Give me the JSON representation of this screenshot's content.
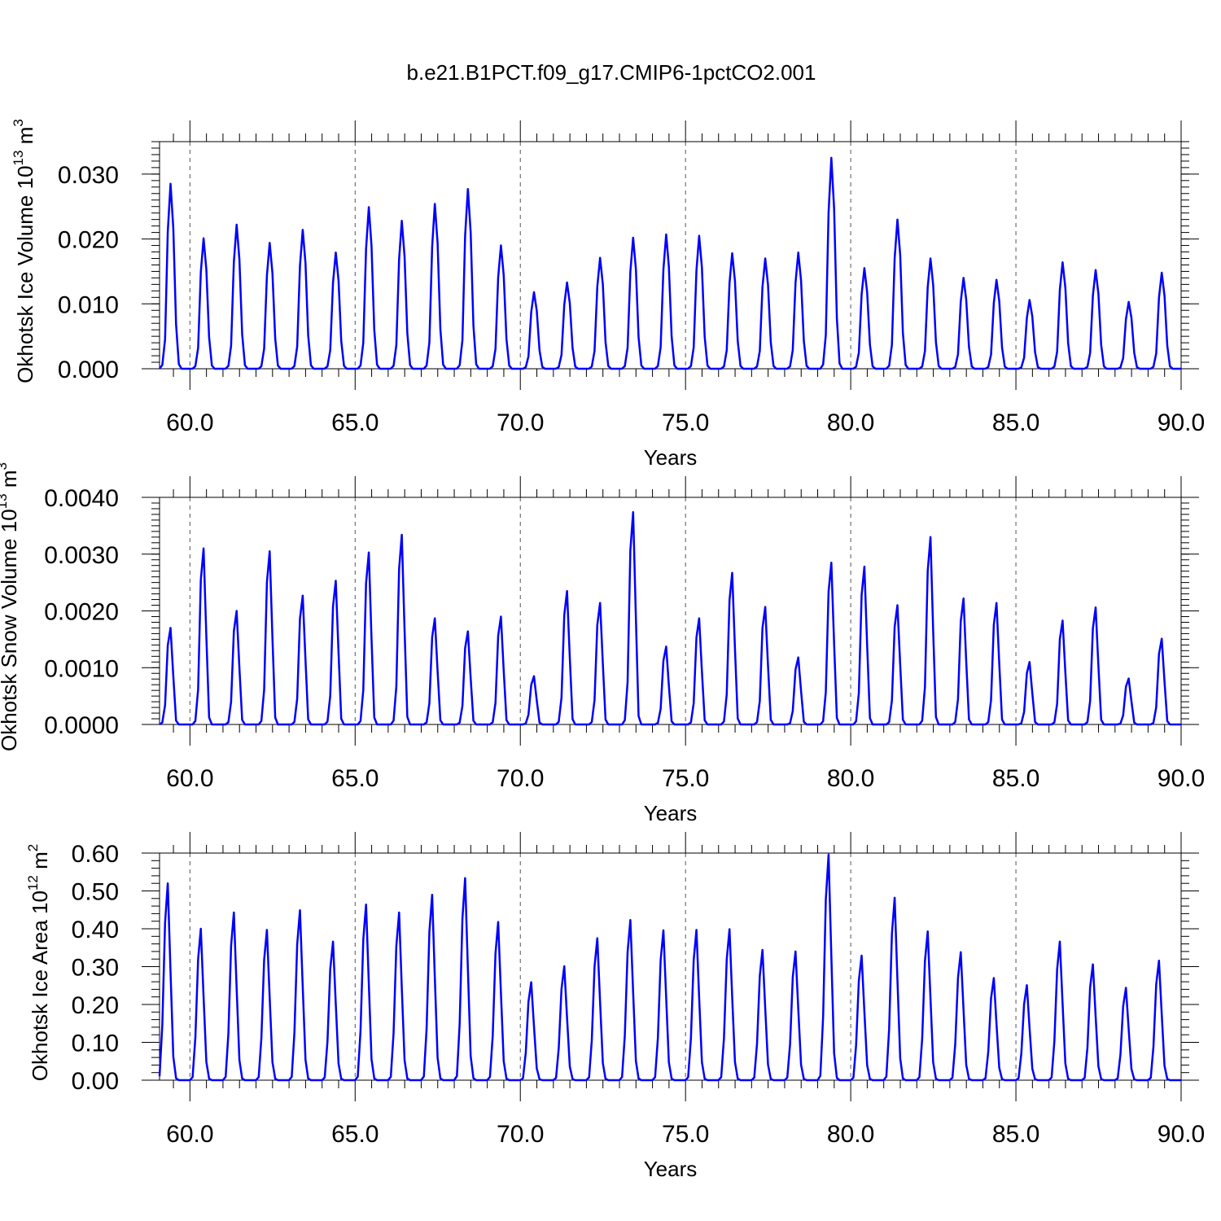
{
  "title": "b.e21.B1PCT.f09_g17.CMIP6-1pctCO2.001",
  "series_color": "#0000ff",
  "chart_data": [
    {
      "type": "line",
      "title": "b.e21.B1PCT.f09_g17.CMIP6-1pctCO2.001",
      "xlabel": "Years",
      "ylabel_main": "Okhotsk Ice Volume 10",
      "ylabel_exp": "13",
      "ylabel_unit": " m",
      "ylabel_unit_exp": "3",
      "xlim": [
        59.08,
        90.0
      ],
      "ylim": [
        0,
        0.035
      ],
      "x_ticks": [
        60,
        65,
        70,
        75,
        80,
        85,
        90
      ],
      "x_tick_labels": [
        "60.0",
        "65.0",
        "70.0",
        "75.0",
        "80.0",
        "85.0",
        "90.0"
      ],
      "y_ticks": [
        0,
        0.01,
        0.02,
        0.03
      ],
      "y_tick_labels": [
        "0.000",
        "0.010",
        "0.020",
        "0.030"
      ],
      "grid": "vertical dashed at major x ticks",
      "series": [
        {
          "start_year": 59.08,
          "step_years": 0.0833333,
          "peaks": [
            0.0285,
            0.0201,
            0.0222,
            0.0194,
            0.0214,
            0.0179,
            0.0249,
            0.0228,
            0.0254,
            0.0277,
            0.019,
            0.0118,
            0.0133,
            0.0171,
            0.0202,
            0.0207,
            0.0205,
            0.0178,
            0.017,
            0.0179,
            0.0325,
            0.0155,
            0.023,
            0.017,
            0.014,
            0.0137,
            0.0106,
            0.0164,
            0.0152,
            0.0103,
            0.0148
          ],
          "shape": [
            0.0005,
            0.02,
            0.16,
            0.74,
            1.0,
            0.76,
            0.24,
            0.025,
            0.0,
            0.0,
            0.0,
            0.0
          ]
        }
      ]
    },
    {
      "type": "line",
      "xlabel": "Years",
      "ylabel_main": "Okhotsk Snow Volume 10",
      "ylabel_exp": "13",
      "ylabel_unit": " m",
      "ylabel_unit_exp": "3",
      "xlim": [
        59.08,
        90.0
      ],
      "ylim": [
        0,
        0.004
      ],
      "x_ticks": [
        60,
        65,
        70,
        75,
        80,
        85,
        90
      ],
      "x_tick_labels": [
        "60.0",
        "65.0",
        "70.0",
        "75.0",
        "80.0",
        "85.0",
        "90.0"
      ],
      "y_ticks": [
        0,
        0.001,
        0.002,
        0.003,
        0.004
      ],
      "y_tick_labels": [
        "0.0000",
        "0.0010",
        "0.0020",
        "0.0030",
        "0.0040"
      ],
      "grid": "vertical dashed at major x ticks",
      "series": [
        {
          "start_year": 59.08,
          "step_years": 0.0833333,
          "peaks": [
            0.0017,
            0.0031,
            0.002,
            0.00305,
            0.00227,
            0.00253,
            0.00303,
            0.00334,
            0.00187,
            0.00164,
            0.0019,
            0.00085,
            0.00235,
            0.00214,
            0.00374,
            0.00137,
            0.00187,
            0.00267,
            0.00207,
            0.00118,
            0.00285,
            0.00278,
            0.0021,
            0.0033,
            0.00222,
            0.00214,
            0.0011,
            0.00183,
            0.00206,
            0.00081,
            0.00151
          ],
          "shape": [
            0.0,
            0.02,
            0.2,
            0.82,
            1.0,
            0.5,
            0.04,
            0.0,
            0.0,
            0.0,
            0.0,
            0.0
          ]
        }
      ]
    },
    {
      "type": "line",
      "xlabel": "Years",
      "ylabel_main": "Okhotsk Ice Area 10",
      "ylabel_exp": "12",
      "ylabel_unit": " m",
      "ylabel_unit_exp": "2",
      "xlim": [
        59.08,
        90.0
      ],
      "ylim": [
        0,
        0.6
      ],
      "x_ticks": [
        60,
        65,
        70,
        75,
        80,
        85,
        90
      ],
      "x_tick_labels": [
        "60.0",
        "65.0",
        "70.0",
        "75.0",
        "80.0",
        "85.0",
        "90.0"
      ],
      "y_ticks": [
        0,
        0.1,
        0.2,
        0.3,
        0.4,
        0.5,
        0.6
      ],
      "y_tick_labels": [
        "0.00",
        "0.10",
        "0.20",
        "0.30",
        "0.40",
        "0.50",
        "0.60"
      ],
      "grid": "vertical dashed at major x ticks",
      "series": [
        {
          "start_year": 59.08,
          "step_years": 0.0833333,
          "peaks": [
            0.52,
            0.4,
            0.443,
            0.397,
            0.449,
            0.366,
            0.464,
            0.443,
            0.49,
            0.534,
            0.418,
            0.259,
            0.301,
            0.375,
            0.423,
            0.396,
            0.397,
            0.399,
            0.344,
            0.34,
            0.596,
            0.329,
            0.482,
            0.393,
            0.338,
            0.27,
            0.251,
            0.366,
            0.306,
            0.244,
            0.316
          ],
          "shape": [
            0.02,
            0.28,
            0.8,
            1.0,
            0.55,
            0.12,
            0.01,
            0.0,
            0.0,
            0.0,
            0.0,
            0.0
          ]
        }
      ]
    }
  ]
}
